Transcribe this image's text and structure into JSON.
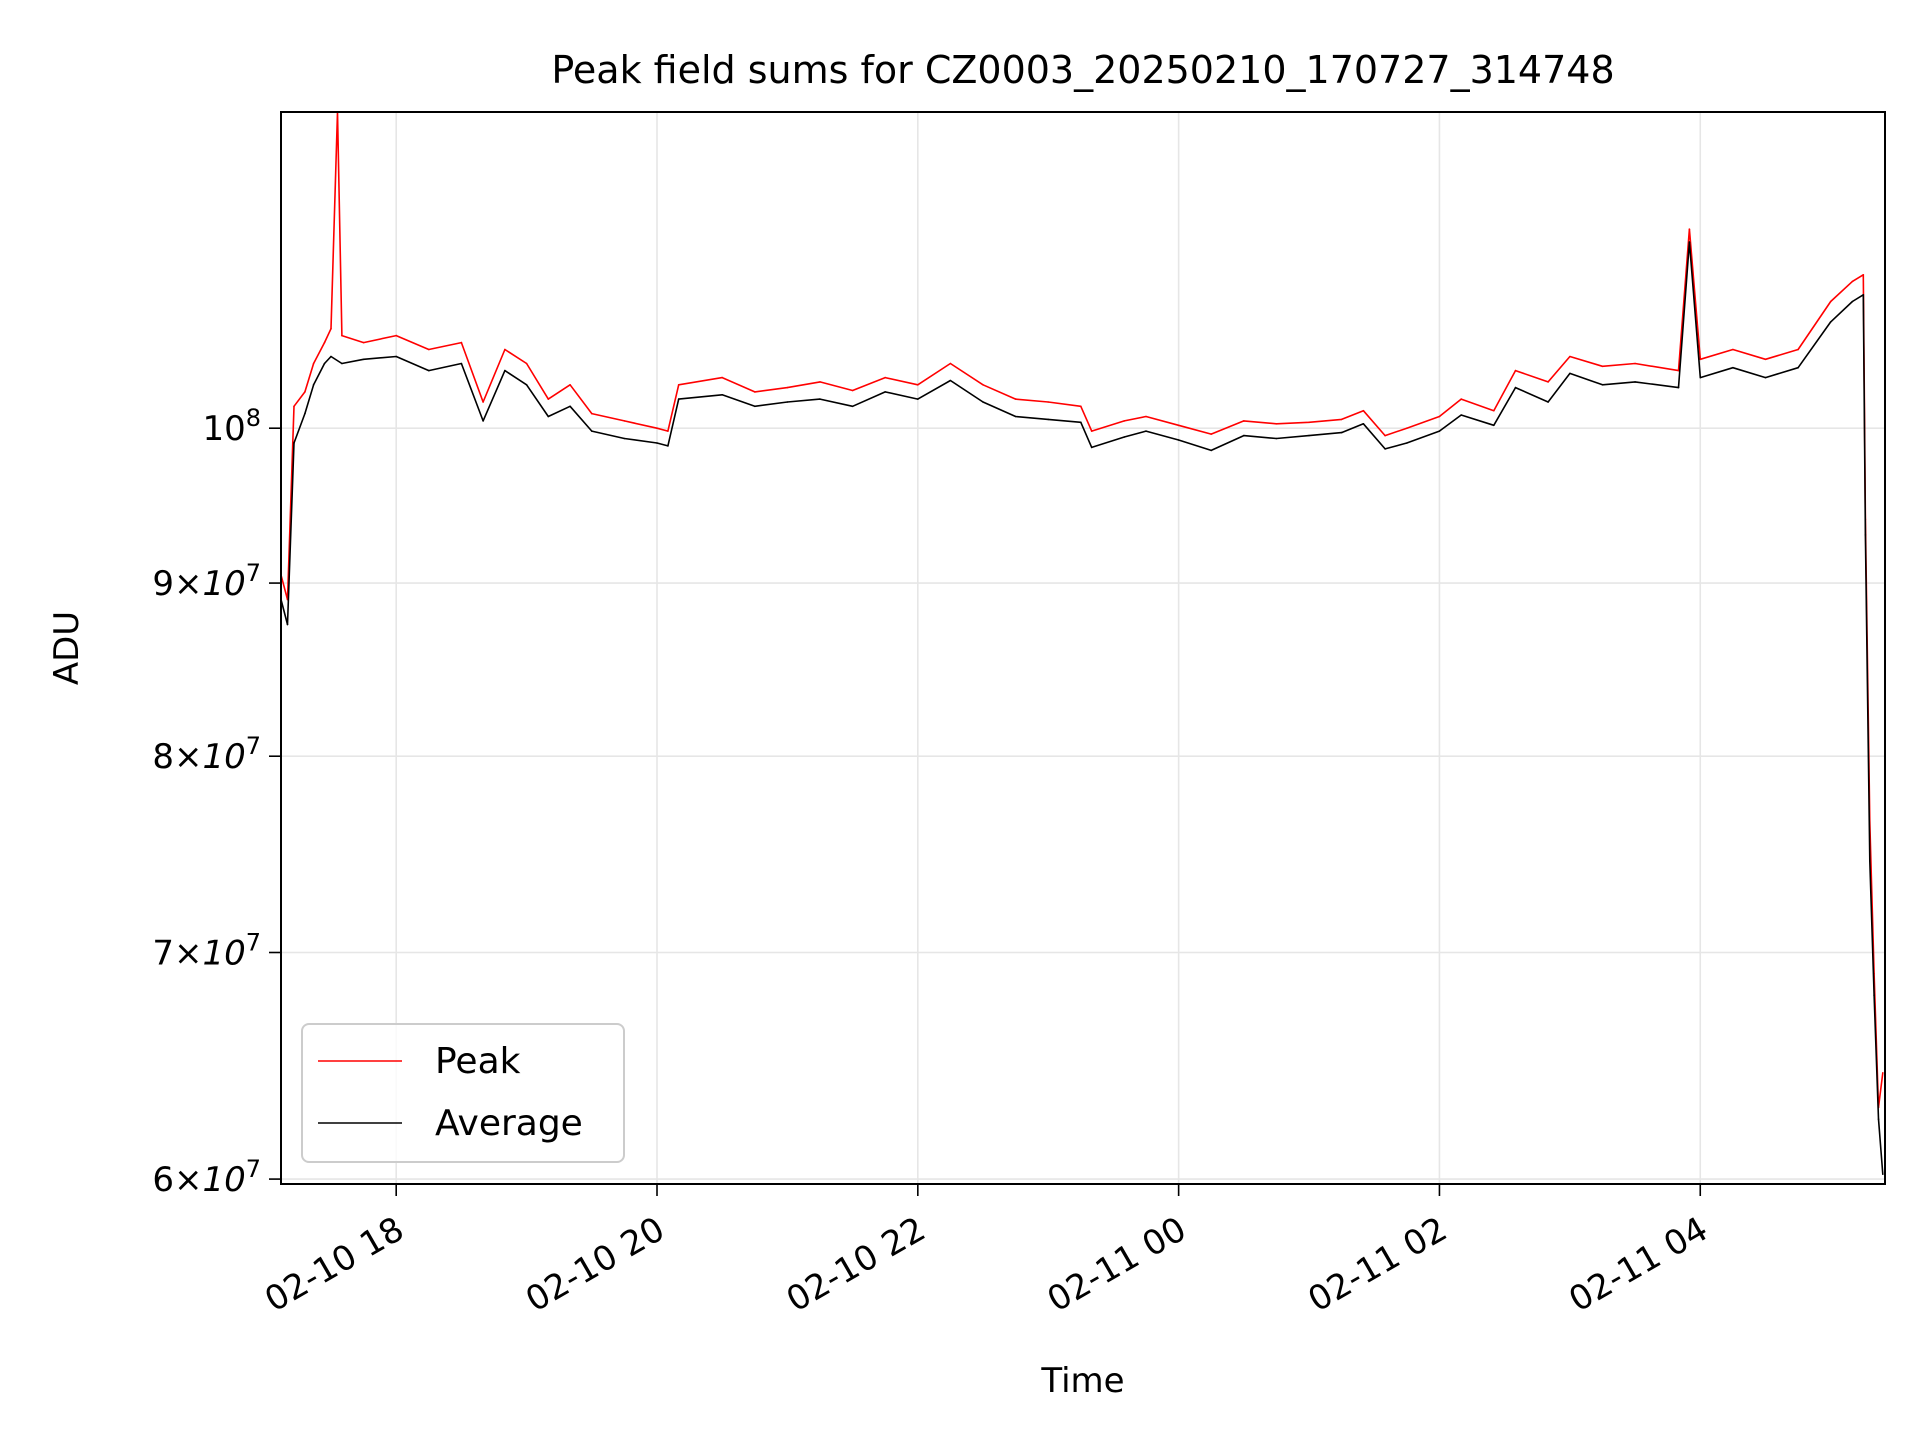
{
  "chart_data": {
    "type": "line",
    "title": "Peak field sums for CZ0003_20250210_170727_314748",
    "xlabel": "Time",
    "ylabel": "ADU",
    "y_scale": "log",
    "grid": true,
    "legend_position": "lower-left",
    "xlim": [
      "2025-02-10 17:07",
      "2025-02-11 05:25"
    ],
    "ylim": [
      59800000,
      124000000
    ],
    "x_ticks": [
      {
        "label": "02-10 18",
        "value": "2025-02-10 18:00"
      },
      {
        "label": "02-10 20",
        "value": "2025-02-10 20:00"
      },
      {
        "label": "02-10 22",
        "value": "2025-02-10 22:00"
      },
      {
        "label": "02-11 00",
        "value": "2025-02-11 00:00"
      },
      {
        "label": "02-11 02",
        "value": "2025-02-11 02:00"
      },
      {
        "label": "02-11 04",
        "value": "2025-02-11 04:00"
      }
    ],
    "y_ticks": [
      {
        "mantissa": "",
        "exponent": "8",
        "value": 100000000
      },
      {
        "mantissa": "9",
        "exponent": "7",
        "value": 90000000
      },
      {
        "mantissa": "8",
        "exponent": "7",
        "value": 80000000
      },
      {
        "mantissa": "7",
        "exponent": "7",
        "value": 70000000
      },
      {
        "mantissa": "6",
        "exponent": "7",
        "value": 60000000
      }
    ],
    "series": [
      {
        "name": "Peak",
        "color": "#ff0000",
        "points": [
          [
            "2025-02-10 17:07",
            90500000
          ],
          [
            "2025-02-10 17:10",
            89000000
          ],
          [
            "2025-02-10 17:13",
            101500000
          ],
          [
            "2025-02-10 17:18",
            102500000
          ],
          [
            "2025-02-10 17:22",
            104500000
          ],
          [
            "2025-02-10 17:27",
            106000000
          ],
          [
            "2025-02-10 17:30",
            107000000
          ],
          [
            "2025-02-10 17:33",
            124000000
          ],
          [
            "2025-02-10 17:35",
            106500000
          ],
          [
            "2025-02-10 17:45",
            106000000
          ],
          [
            "2025-02-10 18:00",
            106500000
          ],
          [
            "2025-02-10 18:15",
            105500000
          ],
          [
            "2025-02-10 18:30",
            106000000
          ],
          [
            "2025-02-10 18:40",
            101800000
          ],
          [
            "2025-02-10 18:50",
            105500000
          ],
          [
            "2025-02-10 19:00",
            104500000
          ],
          [
            "2025-02-10 19:10",
            102000000
          ],
          [
            "2025-02-10 19:20",
            103000000
          ],
          [
            "2025-02-10 19:30",
            101000000
          ],
          [
            "2025-02-10 19:45",
            100500000
          ],
          [
            "2025-02-10 20:00",
            100000000
          ],
          [
            "2025-02-10 20:05",
            99800000
          ],
          [
            "2025-02-10 20:10",
            103000000
          ],
          [
            "2025-02-10 20:30",
            103500000
          ],
          [
            "2025-02-10 20:45",
            102500000
          ],
          [
            "2025-02-10 21:00",
            102800000
          ],
          [
            "2025-02-10 21:15",
            103200000
          ],
          [
            "2025-02-10 21:30",
            102600000
          ],
          [
            "2025-02-10 21:45",
            103500000
          ],
          [
            "2025-02-10 22:00",
            103000000
          ],
          [
            "2025-02-10 22:15",
            104500000
          ],
          [
            "2025-02-10 22:30",
            103000000
          ],
          [
            "2025-02-10 22:45",
            102000000
          ],
          [
            "2025-02-10 23:00",
            101800000
          ],
          [
            "2025-02-10 23:15",
            101500000
          ],
          [
            "2025-02-10 23:20",
            99800000
          ],
          [
            "2025-02-10 23:35",
            100500000
          ],
          [
            "2025-02-10 23:45",
            100800000
          ],
          [
            "2025-02-11 00:00",
            100200000
          ],
          [
            "2025-02-11 00:15",
            99600000
          ],
          [
            "2025-02-11 00:30",
            100500000
          ],
          [
            "2025-02-11 00:45",
            100300000
          ],
          [
            "2025-02-11 01:00",
            100400000
          ],
          [
            "2025-02-11 01:15",
            100600000
          ],
          [
            "2025-02-11 01:25",
            101200000
          ],
          [
            "2025-02-11 01:35",
            99500000
          ],
          [
            "2025-02-11 01:45",
            100000000
          ],
          [
            "2025-02-11 02:00",
            100800000
          ],
          [
            "2025-02-11 02:10",
            102000000
          ],
          [
            "2025-02-11 02:25",
            101200000
          ],
          [
            "2025-02-11 02:35",
            104000000
          ],
          [
            "2025-02-11 02:50",
            103200000
          ],
          [
            "2025-02-11 03:00",
            105000000
          ],
          [
            "2025-02-11 03:15",
            104300000
          ],
          [
            "2025-02-11 03:30",
            104500000
          ],
          [
            "2025-02-11 03:50",
            104000000
          ],
          [
            "2025-02-11 03:55",
            114500000
          ],
          [
            "2025-02-11 04:00",
            104800000
          ],
          [
            "2025-02-11 04:15",
            105500000
          ],
          [
            "2025-02-11 04:30",
            104800000
          ],
          [
            "2025-02-11 04:45",
            105500000
          ],
          [
            "2025-02-11 05:00",
            109000000
          ],
          [
            "2025-02-11 05:10",
            110500000
          ],
          [
            "2025-02-11 05:15",
            111000000
          ],
          [
            "2025-02-11 05:16",
            94000000
          ],
          [
            "2025-02-11 05:18",
            76500000
          ],
          [
            "2025-02-11 05:20",
            69000000
          ],
          [
            "2025-02-11 05:22",
            63000000
          ],
          [
            "2025-02-11 05:24",
            64500000
          ]
        ]
      },
      {
        "name": "Average",
        "color": "#000000",
        "points": [
          [
            "2025-02-10 17:07",
            89000000
          ],
          [
            "2025-02-10 17:10",
            87500000
          ],
          [
            "2025-02-10 17:13",
            99000000
          ],
          [
            "2025-02-10 17:18",
            101000000
          ],
          [
            "2025-02-10 17:22",
            103000000
          ],
          [
            "2025-02-10 17:27",
            104500000
          ],
          [
            "2025-02-10 17:30",
            105000000
          ],
          [
            "2025-02-10 17:35",
            104500000
          ],
          [
            "2025-02-10 17:45",
            104800000
          ],
          [
            "2025-02-10 18:00",
            105000000
          ],
          [
            "2025-02-10 18:15",
            104000000
          ],
          [
            "2025-02-10 18:30",
            104500000
          ],
          [
            "2025-02-10 18:40",
            100500000
          ],
          [
            "2025-02-10 18:50",
            104000000
          ],
          [
            "2025-02-10 19:00",
            103000000
          ],
          [
            "2025-02-10 19:10",
            100800000
          ],
          [
            "2025-02-10 19:20",
            101500000
          ],
          [
            "2025-02-10 19:30",
            99800000
          ],
          [
            "2025-02-10 19:45",
            99300000
          ],
          [
            "2025-02-10 20:00",
            99000000
          ],
          [
            "2025-02-10 20:05",
            98800000
          ],
          [
            "2025-02-10 20:10",
            102000000
          ],
          [
            "2025-02-10 20:30",
            102300000
          ],
          [
            "2025-02-10 20:45",
            101500000
          ],
          [
            "2025-02-10 21:00",
            101800000
          ],
          [
            "2025-02-10 21:15",
            102000000
          ],
          [
            "2025-02-10 21:30",
            101500000
          ],
          [
            "2025-02-10 21:45",
            102500000
          ],
          [
            "2025-02-10 22:00",
            102000000
          ],
          [
            "2025-02-10 22:15",
            103300000
          ],
          [
            "2025-02-10 22:30",
            101800000
          ],
          [
            "2025-02-10 22:45",
            100800000
          ],
          [
            "2025-02-10 23:00",
            100600000
          ],
          [
            "2025-02-10 23:15",
            100400000
          ],
          [
            "2025-02-10 23:20",
            98700000
          ],
          [
            "2025-02-10 23:35",
            99400000
          ],
          [
            "2025-02-10 23:45",
            99800000
          ],
          [
            "2025-02-11 00:00",
            99200000
          ],
          [
            "2025-02-11 00:15",
            98500000
          ],
          [
            "2025-02-11 00:30",
            99500000
          ],
          [
            "2025-02-11 00:45",
            99300000
          ],
          [
            "2025-02-11 01:00",
            99500000
          ],
          [
            "2025-02-11 01:15",
            99700000
          ],
          [
            "2025-02-11 01:25",
            100300000
          ],
          [
            "2025-02-11 01:35",
            98600000
          ],
          [
            "2025-02-11 01:45",
            99000000
          ],
          [
            "2025-02-11 02:00",
            99800000
          ],
          [
            "2025-02-11 02:10",
            100900000
          ],
          [
            "2025-02-11 02:25",
            100200000
          ],
          [
            "2025-02-11 02:35",
            102800000
          ],
          [
            "2025-02-11 02:50",
            101800000
          ],
          [
            "2025-02-11 03:00",
            103800000
          ],
          [
            "2025-02-11 03:15",
            103000000
          ],
          [
            "2025-02-11 03:30",
            103200000
          ],
          [
            "2025-02-11 03:50",
            102800000
          ],
          [
            "2025-02-11 03:55",
            113500000
          ],
          [
            "2025-02-11 04:00",
            103500000
          ],
          [
            "2025-02-11 04:15",
            104200000
          ],
          [
            "2025-02-11 04:30",
            103500000
          ],
          [
            "2025-02-11 04:45",
            104200000
          ],
          [
            "2025-02-11 05:00",
            107500000
          ],
          [
            "2025-02-11 05:10",
            109000000
          ],
          [
            "2025-02-11 05:15",
            109500000
          ],
          [
            "2025-02-11 05:16",
            93000000
          ],
          [
            "2025-02-11 05:18",
            74500000
          ],
          [
            "2025-02-11 05:20",
            68000000
          ],
          [
            "2025-02-11 05:22",
            62500000
          ],
          [
            "2025-02-11 05:24",
            60200000
          ]
        ]
      }
    ]
  }
}
